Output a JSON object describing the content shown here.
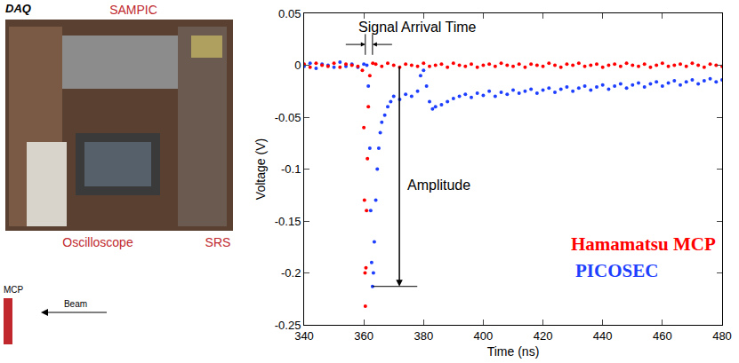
{
  "panel": {
    "title": "DAQ",
    "labels": [
      "SAMPIC",
      "Oscilloscope",
      "SRS"
    ],
    "detector": "MCP",
    "beam": "Beam"
  },
  "chart_data": {
    "type": "scatter",
    "x_label": "Time (ns)",
    "y_label": "Voltage (V)",
    "xlim": [
      340,
      480
    ],
    "xticks": [
      340,
      360,
      380,
      400,
      420,
      440,
      460,
      480
    ],
    "ylim": [
      -0.25,
      0.05
    ],
    "yticks": [
      -0.25,
      -0.2,
      -0.15,
      -0.1,
      -0.05,
      0,
      0.05
    ],
    "grid": false,
    "annotations": [
      "Signal Arrival Time",
      "Amplitude"
    ],
    "series": [
      {
        "name": "PICOSEC",
        "color": "#1f3fff",
        "marker": "dot",
        "x": [
          340,
          342,
          344,
          346,
          348,
          350,
          352,
          354,
          356,
          358,
          360,
          361,
          361.5,
          362,
          362.3,
          362.6,
          362.9,
          363.2,
          363.5,
          364,
          364.5,
          365,
          365.5,
          366,
          367,
          368,
          369,
          370,
          372,
          374,
          376,
          378,
          379,
          380,
          381,
          382,
          383,
          384,
          386,
          388,
          390,
          392,
          394,
          396,
          398,
          400,
          402,
          404,
          406,
          408,
          410,
          412,
          414,
          416,
          418,
          420,
          422,
          424,
          426,
          428,
          430,
          432,
          434,
          436,
          438,
          440,
          442,
          444,
          446,
          448,
          450,
          452,
          454,
          456,
          458,
          460,
          462,
          464,
          466,
          468,
          470,
          472,
          474,
          476,
          478,
          480
        ],
        "values": [
          -0.001,
          0.002,
          -0.003,
          0.001,
          0,
          -0.002,
          0.003,
          -0.001,
          0.001,
          -0.002,
          0.001,
          0,
          -0.02,
          -0.08,
          -0.14,
          -0.19,
          -0.213,
          -0.2,
          -0.17,
          -0.13,
          -0.1,
          -0.08,
          -0.065,
          -0.055,
          -0.048,
          -0.04,
          -0.035,
          -0.03,
          -0.033,
          -0.028,
          -0.03,
          -0.025,
          -0.01,
          -0.005,
          -0.02,
          -0.035,
          -0.042,
          -0.04,
          -0.038,
          -0.035,
          -0.032,
          -0.03,
          -0.028,
          -0.031,
          -0.027,
          -0.029,
          -0.025,
          -0.03,
          -0.026,
          -0.028,
          -0.024,
          -0.027,
          -0.025,
          -0.023,
          -0.027,
          -0.024,
          -0.022,
          -0.026,
          -0.023,
          -0.021,
          -0.025,
          -0.022,
          -0.02,
          -0.024,
          -0.021,
          -0.019,
          -0.023,
          -0.02,
          -0.018,
          -0.022,
          -0.019,
          -0.017,
          -0.021,
          -0.018,
          -0.016,
          -0.02,
          -0.017,
          -0.015,
          -0.019,
          -0.016,
          -0.014,
          -0.018,
          -0.015,
          -0.013,
          -0.016,
          -0.014
        ]
      },
      {
        "name": "Hamamatsu MCP",
        "color": "#ff0000",
        "marker": "dot",
        "x": [
          340,
          342,
          344,
          346,
          348,
          350,
          352,
          354,
          356,
          358,
          359.5,
          360,
          360.2,
          360.4,
          360.5,
          360.7,
          360.9,
          361.2,
          361.5,
          362,
          363,
          364,
          366,
          368,
          370,
          372,
          374,
          376,
          378,
          380,
          382,
          384,
          386,
          388,
          390,
          392,
          394,
          396,
          398,
          400,
          402,
          404,
          406,
          408,
          410,
          412,
          414,
          416,
          418,
          420,
          422,
          424,
          426,
          428,
          430,
          432,
          434,
          436,
          438,
          440,
          442,
          444,
          446,
          448,
          450,
          452,
          454,
          456,
          458,
          460,
          462,
          464,
          466,
          468,
          470,
          472,
          474,
          476,
          478,
          480
        ],
        "values": [
          0.001,
          -0.002,
          0.002,
          0,
          -0.001,
          0.002,
          -0.002,
          0.001,
          0,
          -0.001,
          -0.005,
          -0.06,
          -0.13,
          -0.2,
          -0.232,
          -0.195,
          -0.14,
          -0.09,
          -0.04,
          -0.01,
          0.002,
          0.001,
          -0.001,
          0.002,
          0,
          -0.002,
          0.001,
          0,
          -0.001,
          0.002,
          -0.001,
          0,
          0.001,
          -0.002,
          0.002,
          0,
          -0.001,
          0.001,
          -0.002,
          0,
          0.001,
          -0.001,
          0.002,
          0,
          -0.001,
          0.001,
          -0.002,
          0.001,
          0,
          -0.001,
          0.002,
          0,
          -0.002,
          0.001,
          0,
          0.002,
          -0.001,
          0,
          0.001,
          -0.002,
          0,
          0.001,
          -0.001,
          0.002,
          0,
          -0.001,
          0.001,
          -0.002,
          0,
          0.002,
          -0.001,
          0,
          0.001,
          -0.001,
          0.002,
          0,
          -0.002,
          0.001,
          0,
          -0.001
        ]
      }
    ]
  }
}
